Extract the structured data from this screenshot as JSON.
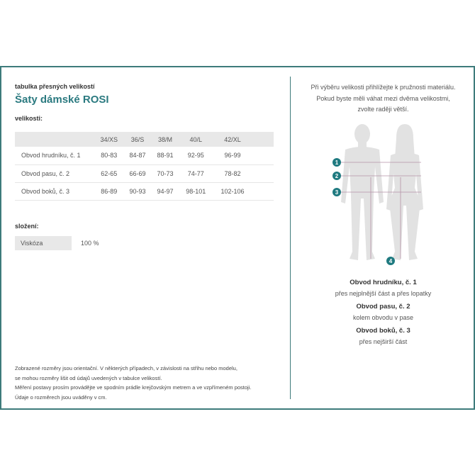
{
  "subtitle": "tabulka přesných velikostí",
  "title": "Šaty dámské ROSI",
  "sizes_label": "velikosti:",
  "table": {
    "headers": [
      "",
      "34/XS",
      "36/S",
      "38/M",
      "40/L",
      "42/XL"
    ],
    "rows": [
      [
        "Obvod hrudníku, č. 1",
        "80-83",
        "84-87",
        "88-91",
        "92-95",
        "96-99"
      ],
      [
        "Obvod pasu, č. 2",
        "62-65",
        "66-69",
        "70-73",
        "74-77",
        "78-82"
      ],
      [
        "Obvod boků, č. 3",
        "86-89",
        "90-93",
        "94-97",
        "98-101",
        "102-106"
      ]
    ]
  },
  "composition_label": "složení:",
  "composition": {
    "material": "Viskóza",
    "percent": "100 %"
  },
  "footnote": [
    "Zobrazené rozměry jsou orientační. V některých případech, v závislosti na střihu nebo modelu,",
    "se mohou rozměry lišit od údajů uvedených v tabulce velikostí.",
    "Měření postavy prosím provádějte ve spodním prádle krejčovským metrem a ve vzpřímeném postoji.",
    "Údaje o rozměrech jsou uváděny v cm."
  ],
  "advice": [
    "Při výběru velikosti přihlížejte k pružnosti materiálu.",
    "Pokud byste měli váhat mezi dvěma velikostmi,",
    "zvolte raději větší."
  ],
  "markers": [
    "1",
    "2",
    "3",
    "4"
  ],
  "measurements": [
    {
      "name": "Obvod hrudníku, č. 1",
      "desc": "přes nejplnější část a přes lopatky"
    },
    {
      "name": "Obvod pasu, č. 2",
      "desc": "kolem obvodu v pase"
    },
    {
      "name": "Obvod boků, č. 3",
      "desc": "přes nejširší část"
    }
  ],
  "colors": {
    "accent": "#2b7a80",
    "border": "#3d7b7b",
    "silhouette": "#e2e2e2",
    "line": "#b593a8"
  }
}
